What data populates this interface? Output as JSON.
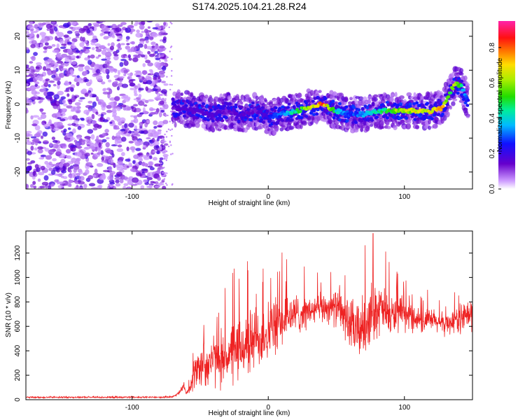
{
  "title": "S174.2025.104.21.28.R24",
  "chart_data": [
    {
      "type": "heatmap",
      "xlabel": "Height of straight line (km)",
      "ylabel": "Frequency (Hz)",
      "xlim": [
        -178,
        150
      ],
      "ylim": [
        -25,
        24.5
      ],
      "x_ticks": [
        "-100",
        "0",
        "100"
      ],
      "y_ticks": [
        "-20",
        "-10",
        "0",
        "10",
        "20"
      ],
      "colorbar": {
        "label": "Normalized spectral amplitude",
        "range": [
          0,
          0.95
        ],
        "ticks": [
          "0.0",
          "0.2",
          "0.4",
          "0.6",
          "0.8"
        ]
      },
      "ridge": {
        "description_points_x": [
          -70,
          -60,
          -50,
          -40,
          -30,
          -20,
          -10,
          0,
          10,
          20,
          30,
          40,
          50,
          60,
          70,
          80,
          90,
          100,
          110,
          120,
          128,
          133,
          137,
          142,
          147
        ],
        "frequency_hz": [
          -1,
          -1.5,
          -2,
          -3,
          -2,
          -3,
          -2,
          -4,
          -3,
          -2,
          -1,
          0,
          -2,
          -3,
          -3,
          -2,
          -2,
          -2,
          -2,
          -2,
          -1,
          3,
          6,
          5,
          1
        ],
        "amplitude": [
          0.15,
          0.2,
          0.18,
          0.2,
          0.15,
          0.2,
          0.15,
          0.25,
          0.35,
          0.5,
          0.7,
          0.9,
          0.45,
          0.3,
          0.4,
          0.5,
          0.6,
          0.7,
          0.75,
          0.8,
          0.85,
          0.6,
          0.7,
          0.5,
          0.3
        ]
      },
      "noise_region_x": [
        -178,
        -75
      ]
    },
    {
      "type": "line",
      "xlabel": "Height of straight line (km)",
      "ylabel": "SNR (10 * v/v)",
      "xlim": [
        -178,
        150
      ],
      "ylim": [
        0,
        1380
      ],
      "x_ticks": [
        "-100",
        "0",
        "100"
      ],
      "y_ticks": [
        "0",
        "200",
        "400",
        "600",
        "800",
        "1000",
        "1200"
      ],
      "series": [
        {
          "color": "#ee2222",
          "x": [
            -178,
            -160,
            -140,
            -120,
            -100,
            -90,
            -80,
            -70,
            -65,
            -62,
            -60,
            -58,
            -55,
            -50,
            -45,
            -40,
            -35,
            -30,
            -25,
            -20,
            -15,
            -10,
            -5,
            0,
            5,
            10,
            15,
            20,
            25,
            30,
            35,
            40,
            45,
            50,
            55,
            60,
            65,
            70,
            75,
            80,
            85,
            90,
            95,
            100,
            105,
            110,
            115,
            120,
            125,
            130,
            135,
            140,
            145,
            150
          ],
          "y": [
            20,
            20,
            20,
            20,
            20,
            20,
            20,
            25,
            60,
            120,
            50,
            100,
            200,
            280,
            300,
            330,
            340,
            360,
            380,
            420,
            450,
            500,
            520,
            560,
            600,
            640,
            680,
            700,
            710,
            720,
            730,
            750,
            760,
            750,
            700,
            620,
            560,
            600,
            700,
            750,
            720,
            680,
            700,
            690,
            680,
            660,
            640,
            650,
            630,
            620,
            640,
            660,
            680,
            700
          ],
          "spread": [
            8,
            8,
            8,
            8,
            8,
            8,
            8,
            10,
            20,
            40,
            30,
            60,
            150,
            220,
            250,
            260,
            280,
            300,
            320,
            330,
            330,
            320,
            320,
            300,
            280,
            260,
            240,
            200,
            180,
            160,
            150,
            150,
            160,
            180,
            220,
            260,
            280,
            300,
            300,
            280,
            240,
            200,
            180,
            160,
            140,
            130,
            120,
            120,
            110,
            110,
            120,
            140,
            160,
            180
          ],
          "peak_max": 1360
        }
      ]
    }
  ]
}
